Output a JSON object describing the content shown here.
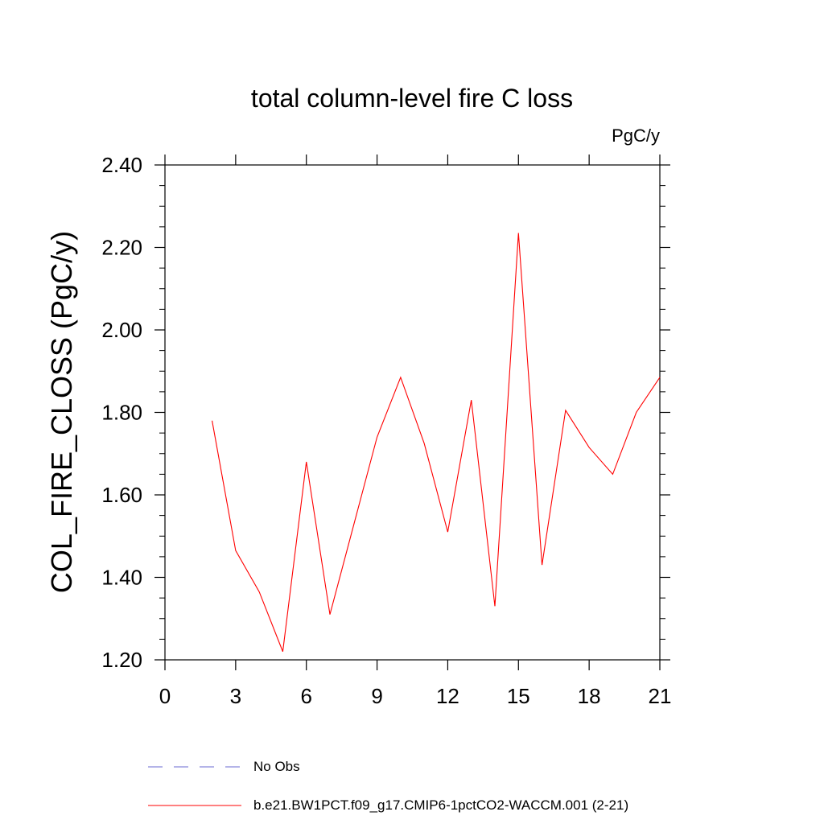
{
  "chart_data": {
    "type": "line",
    "title": "total column-level fire C loss",
    "units_label": "PgC/y",
    "ylabel": "COL_FIRE_CLOSS  (PgC/y)",
    "xlabel": "",
    "xlim": [
      0,
      21
    ],
    "ylim": [
      1.2,
      2.4
    ],
    "x_ticks": [
      "0",
      "3",
      "6",
      "9",
      "12",
      "15",
      "18",
      "21"
    ],
    "y_ticks": [
      "1.20",
      "1.40",
      "1.60",
      "1.80",
      "2.00",
      "2.20",
      "2.40"
    ],
    "grid": false,
    "legend_placement": "bottom",
    "series": [
      {
        "name": "No Obs",
        "color": "#6a6ad0",
        "style": "dashed",
        "x": [],
        "y": []
      },
      {
        "name": "b.e21.BW1PCT.f09_g17.CMIP6-1pctCO2-WACCM.001 (2-21)",
        "color": "#ff0000",
        "style": "solid",
        "x": [
          2,
          3,
          4,
          5,
          6,
          7,
          8,
          9,
          10,
          11,
          12,
          13,
          14,
          15,
          16,
          17,
          18,
          19,
          20,
          21
        ],
        "y": [
          1.78,
          1.465,
          1.365,
          1.22,
          1.68,
          1.31,
          1.525,
          1.74,
          1.885,
          1.725,
          1.51,
          1.83,
          1.33,
          2.235,
          1.43,
          1.805,
          1.715,
          1.65,
          1.8,
          1.885
        ]
      }
    ]
  }
}
